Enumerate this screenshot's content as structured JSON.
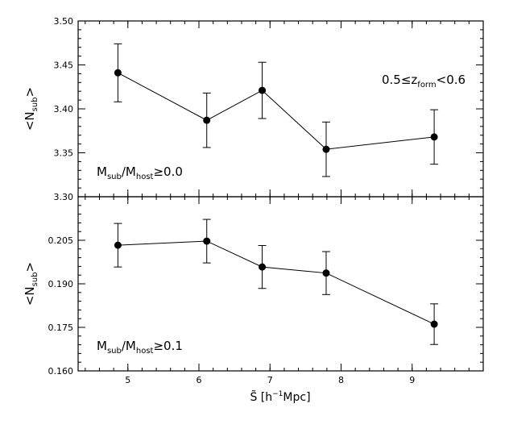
{
  "chart_data": [
    {
      "type": "scatter",
      "panel": "top",
      "x": [
        4.86,
        6.11,
        6.89,
        7.79,
        9.31
      ],
      "y": [
        3.441,
        3.387,
        3.421,
        3.354,
        3.368
      ],
      "yerr": [
        0.033,
        0.031,
        0.032,
        0.031,
        0.031
      ],
      "ylim": [
        3.3,
        3.5
      ],
      "yticks": [
        "3.30",
        "3.35",
        "3.40",
        "3.45",
        "3.50"
      ],
      "ylabel": {
        "pre": "<N",
        "sub": "sub",
        "post": ">"
      },
      "annotation": {
        "pre": "M",
        "sub1": "sub",
        "mid": "/M",
        "sub2": "host",
        "post": "≥0.0"
      },
      "top_annotation": {
        "pre": "0.5≤z",
        "sub": "form",
        "post": "<0.6"
      },
      "connected": true
    },
    {
      "type": "scatter",
      "panel": "bottom",
      "x": [
        4.86,
        6.11,
        6.89,
        7.79,
        9.31
      ],
      "y": [
        0.2033,
        0.2047,
        0.1958,
        0.1937,
        0.1761
      ],
      "yerr": [
        0.0075,
        0.0075,
        0.0074,
        0.0074,
        0.007
      ],
      "ylim": [
        0.16,
        0.22
      ],
      "yticks": [
        "0.160",
        "0.175",
        "0.190",
        "0.205"
      ],
      "ylabel": {
        "pre": "<N",
        "sub": "sub",
        "post": ">"
      },
      "annotation": {
        "pre": "M",
        "sub1": "sub",
        "mid": "/M",
        "sub2": "host",
        "post": "≥0.1"
      },
      "connected": true
    }
  ],
  "xaxis": {
    "xlim": [
      4.3,
      10.0
    ],
    "xticks": [
      "5",
      "6",
      "7",
      "8",
      "9"
    ],
    "xlabel": {
      "main": "S̃ [h",
      "sup": "−1",
      "post": "Mpc]"
    }
  }
}
